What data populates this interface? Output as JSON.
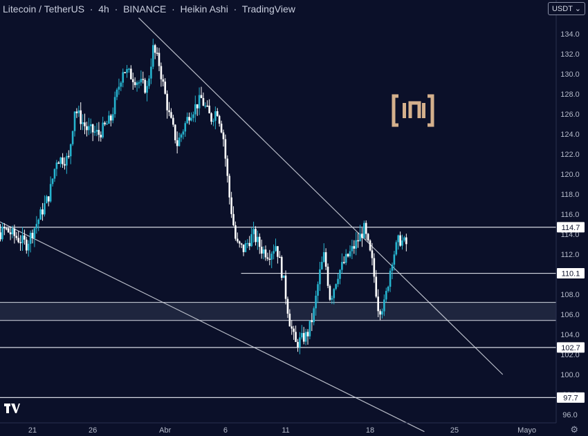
{
  "header": {
    "symbol": "Litecoin / TetherUS",
    "interval": "4h",
    "exchange": "BINANCE",
    "chart_style": "Heikin Ashi",
    "platform": "TradingView"
  },
  "currency_selector": {
    "label": "USDT",
    "icon": "chevron-down-icon"
  },
  "footer": {
    "icon_left": "tradingview-logo-icon",
    "icon_right": "gear-icon"
  },
  "watermark": {
    "icon": "beincrypto-logo-icon"
  },
  "colors": {
    "background": "#0b1029",
    "bullish": "#26b4cf",
    "bearish": "#ffffff",
    "lines": "#d6d9e3",
    "axis_text": "#b6bccb",
    "zone_fill": "#262c45",
    "logo": "#d4b08c"
  },
  "chart_data": {
    "type": "candlestick",
    "title": "Litecoin / TetherUS · 4h · BINANCE · Heikin Ashi · TradingView",
    "grid": false,
    "ylim": [
      95.0,
      135.5
    ],
    "y_ticks": [
      96.0,
      98.0,
      100.0,
      102.0,
      104.0,
      106.0,
      108.0,
      110.0,
      112.0,
      114.0,
      116.0,
      118.0,
      120.0,
      122.0,
      124.0,
      126.0,
      128.0,
      130.0,
      132.0,
      134.0
    ],
    "x_ticks": [
      {
        "label": "21",
        "day": 21
      },
      {
        "label": "26",
        "day": 26
      },
      {
        "label": "Abr",
        "day": 32
      },
      {
        "label": "6",
        "day": 37
      },
      {
        "label": "11",
        "day": 42
      },
      {
        "label": "18",
        "day": 49
      },
      {
        "label": "25",
        "day": 56
      },
      {
        "label": "Mayo",
        "day": 62
      }
    ],
    "price_trend": [
      {
        "day": 16.0,
        "price": 110.5
      },
      {
        "day": 17.5,
        "price": 113.0
      },
      {
        "day": 18.7,
        "price": 114.5
      },
      {
        "day": 20.5,
        "price": 113.0
      },
      {
        "day": 21.5,
        "price": 115.5
      },
      {
        "day": 22.4,
        "price": 118.0
      },
      {
        "day": 23.0,
        "price": 121.5
      },
      {
        "day": 24.0,
        "price": 121.5
      },
      {
        "day": 24.5,
        "price": 126.5
      },
      {
        "day": 25.5,
        "price": 124.5
      },
      {
        "day": 26.5,
        "price": 124.0
      },
      {
        "day": 27.5,
        "price": 125.5
      },
      {
        "day": 28.5,
        "price": 130.5
      },
      {
        "day": 29.5,
        "price": 129.5
      },
      {
        "day": 30.5,
        "price": 128.5
      },
      {
        "day": 31.0,
        "price": 132.5
      },
      {
        "day": 31.5,
        "price": 131.0
      },
      {
        "day": 32.3,
        "price": 126.0
      },
      {
        "day": 33.0,
        "price": 123.0
      },
      {
        "day": 34.0,
        "price": 126.0
      },
      {
        "day": 35.0,
        "price": 127.5
      },
      {
        "day": 35.8,
        "price": 125.5
      },
      {
        "day": 36.3,
        "price": 126.5
      },
      {
        "day": 36.8,
        "price": 124.0
      },
      {
        "day": 37.3,
        "price": 118.0
      },
      {
        "day": 37.9,
        "price": 113.0
      },
      {
        "day": 38.5,
        "price": 112.5
      },
      {
        "day": 39.3,
        "price": 114.0
      },
      {
        "day": 40.0,
        "price": 112.5
      },
      {
        "day": 40.6,
        "price": 112.0
      },
      {
        "day": 41.2,
        "price": 113.0
      },
      {
        "day": 41.8,
        "price": 109.5
      },
      {
        "day": 42.3,
        "price": 105.5
      },
      {
        "day": 42.8,
        "price": 103.0
      },
      {
        "day": 43.3,
        "price": 103.5
      },
      {
        "day": 43.8,
        "price": 104.0
      },
      {
        "day": 44.3,
        "price": 106.0
      },
      {
        "day": 44.8,
        "price": 110.0
      },
      {
        "day": 45.2,
        "price": 112.0
      },
      {
        "day": 45.7,
        "price": 107.5
      },
      {
        "day": 46.3,
        "price": 110.0
      },
      {
        "day": 47.0,
        "price": 111.5
      },
      {
        "day": 47.8,
        "price": 113.0
      },
      {
        "day": 48.5,
        "price": 114.5
      },
      {
        "day": 49.2,
        "price": 111.0
      },
      {
        "day": 49.7,
        "price": 106.5
      },
      {
        "day": 50.2,
        "price": 107.0
      },
      {
        "day": 50.8,
        "price": 111.5
      },
      {
        "day": 51.4,
        "price": 113.5
      },
      {
        "day": 52.0,
        "price": 113.0
      }
    ],
    "horizontal_levels": [
      {
        "label": "114.7",
        "price": 114.7
      },
      {
        "label": "110.1",
        "price": 110.1
      },
      {
        "label": "102.7",
        "price": 102.7
      },
      {
        "label": "97.7",
        "price": 97.7
      }
    ],
    "support_zone": {
      "low": 105.4,
      "high": 107.2
    },
    "trendlines": [
      {
        "name": "descending-resistance",
        "from": {
          "day": 29.8,
          "price": 135.6
        },
        "to": {
          "day": 60.0,
          "price": 100.0
        }
      },
      {
        "name": "descending-support",
        "from": {
          "day": 14.5,
          "price": 117.5
        },
        "to": {
          "day": 53.5,
          "price": 94.3
        }
      }
    ]
  }
}
